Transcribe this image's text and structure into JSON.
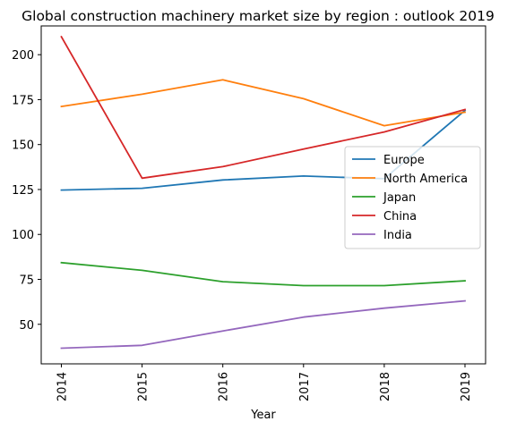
{
  "chart_data": {
    "type": "line",
    "title": "Global construction machinery market size by region : outlook 2019",
    "xlabel": "Year",
    "ylabel": "",
    "x": [
      "2014",
      "2015",
      "2016",
      "2017",
      "2018",
      "2019"
    ],
    "ylim": [
      28,
      216
    ],
    "yticks": [
      50,
      75,
      100,
      125,
      150,
      175,
      200
    ],
    "grid": false,
    "legend_position": "center-right",
    "series": [
      {
        "name": "Europe",
        "color": "#1f77b4",
        "values": [
          124.7,
          125.7,
          130.3,
          132.5,
          131.0,
          169.0
        ]
      },
      {
        "name": "North America",
        "color": "#ff7f0e",
        "values": [
          171.2,
          178.0,
          186.0,
          175.5,
          160.5,
          168.0
        ]
      },
      {
        "name": "Japan",
        "color": "#2ca02c",
        "values": [
          84.3,
          80.0,
          73.7,
          71.5,
          71.5,
          74.2
        ]
      },
      {
        "name": "China",
        "color": "#d62728",
        "values": [
          210.0,
          131.3,
          137.7,
          147.5,
          157.0,
          169.5
        ]
      },
      {
        "name": "India",
        "color": "#9467bd",
        "values": [
          36.7,
          38.3,
          46.3,
          54.0,
          59.0,
          63.0
        ]
      }
    ]
  }
}
